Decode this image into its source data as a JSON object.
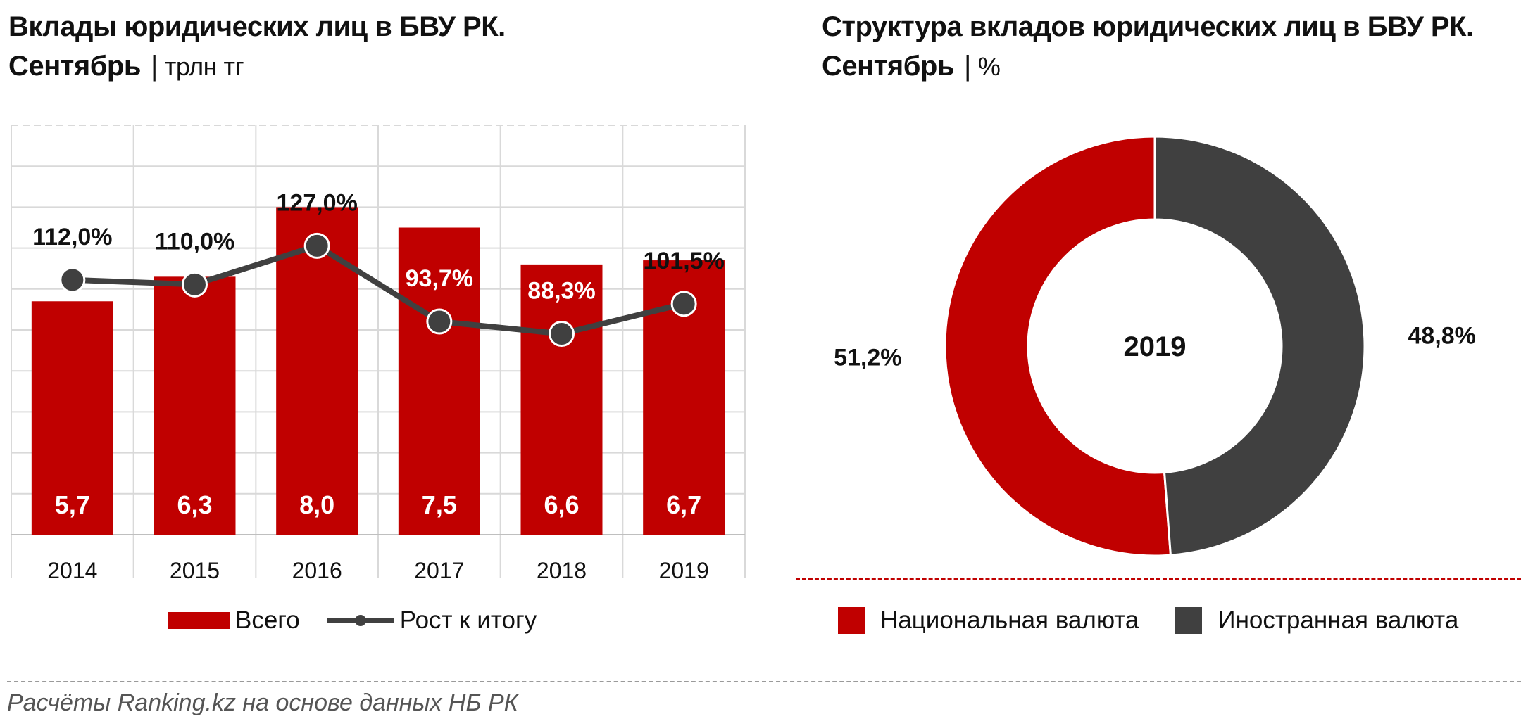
{
  "left_panel": {
    "title_line1": "Вклады юридических лиц в БВУ РК.",
    "title_line2": "Сентябрь",
    "separator": "|",
    "unit": "трлн тг",
    "legend": {
      "bars": "Всего",
      "line": "Рост к итогу"
    }
  },
  "right_panel": {
    "title_line1": "Структура вкладов юридических лиц в БВУ РК.",
    "title_line2": "Сентябрь",
    "separator": "|",
    "unit": "%",
    "center_label": "2019",
    "legend": {
      "national": "Национальная валюта",
      "foreign": "Иностранная валюта"
    }
  },
  "source": "Расчёты Ranking.kz на основе данных НБ РК",
  "colors": {
    "red": "#c00000",
    "dark": "#404040",
    "grid": "#d9d9d9"
  },
  "chart_data": [
    {
      "type": "bar",
      "title": "Вклады юридических лиц в БВУ РК. Сентябрь",
      "unit": "трлн тг",
      "categories": [
        "2014",
        "2015",
        "2016",
        "2017",
        "2018",
        "2019"
      ],
      "series": [
        {
          "name": "Всего",
          "type": "bar",
          "values": [
            5.7,
            6.3,
            8.0,
            7.5,
            6.6,
            6.7
          ],
          "labels": [
            "5,7",
            "6,3",
            "8,0",
            "7,5",
            "6,6",
            "6,7"
          ]
        },
        {
          "name": "Рост к итогу",
          "type": "line",
          "values": [
            112.0,
            110.0,
            127.0,
            93.7,
            88.3,
            101.5
          ],
          "labels": [
            "112,0%",
            "110,0%",
            "127,0%",
            "93,7%",
            "88,3%",
            "101,5%"
          ]
        }
      ],
      "ylim": [
        0,
        10
      ],
      "y2lim": [
        0,
        180
      ],
      "grid": true,
      "legend_position": "bottom"
    },
    {
      "type": "pie",
      "title": "Структура вкладов юридических лиц в БВУ РК. Сентябрь",
      "unit": "%",
      "center_label": "2019",
      "slices": [
        {
          "name": "Национальная валюта",
          "value": 51.2,
          "label": "51,2%"
        },
        {
          "name": "Иностранная валюта",
          "value": 48.8,
          "label": "48,8%"
        }
      ],
      "legend_position": "bottom"
    }
  ]
}
